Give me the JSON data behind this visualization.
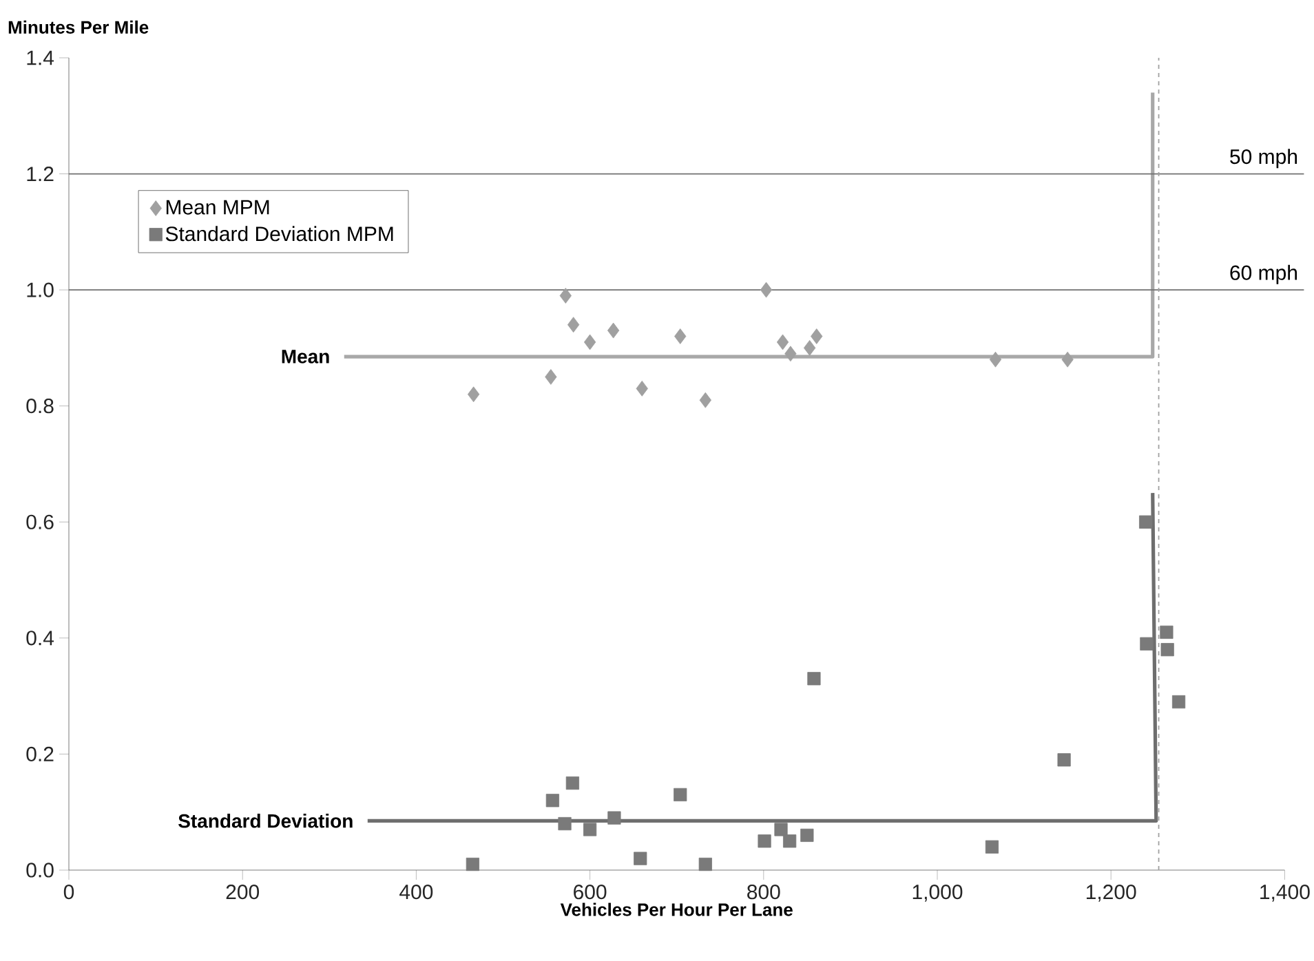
{
  "chart_data": {
    "type": "scatter",
    "xlabel": "Vehicles Per Hour Per Lane",
    "ylabel": "Minutes Per Mile",
    "xlim": [
      0,
      1400
    ],
    "ylim": [
      0,
      1.4
    ],
    "xticks": [
      0,
      200,
      400,
      600,
      800,
      {
        "value": 1000,
        "label": "1,000"
      },
      {
        "value": 1200,
        "label": "1,200"
      },
      {
        "value": 1400,
        "label": "1,400"
      }
    ],
    "yticks": [
      {
        "value": 0,
        "label": "0.0"
      },
      0.2,
      0.4,
      0.6,
      0.8,
      {
        "value": 1,
        "label": "1.0"
      },
      1.2,
      1.4
    ],
    "legend": "top left",
    "series": [
      {
        "name": "Mean MPM",
        "marker": "diamond",
        "color": "#a0a0a0",
        "x": [
          466,
          555,
          572,
          581,
          600,
          627,
          660,
          704,
          733,
          803,
          822,
          831,
          853,
          861,
          1067,
          1150
        ],
        "values": [
          0.82,
          0.85,
          0.99,
          0.94,
          0.91,
          0.93,
          0.83,
          0.92,
          0.81,
          1.0,
          0.91,
          0.89,
          0.9,
          0.92,
          0.88,
          0.88
        ]
      },
      {
        "name": "Standard Deviation MPM",
        "marker": "square",
        "color": "#7a7a7a",
        "x": [
          465,
          557,
          571,
          580,
          600,
          628,
          658,
          704,
          733,
          801,
          820,
          830,
          850,
          858,
          1063,
          1146,
          1240,
          1241,
          1264,
          1265,
          1278
        ],
        "values": [
          0.01,
          0.12,
          0.08,
          0.15,
          0.07,
          0.09,
          0.02,
          0.13,
          0.01,
          0.05,
          0.07,
          0.05,
          0.06,
          0.33,
          0.04,
          0.19,
          0.6,
          0.39,
          0.41,
          0.38,
          0.29
        ]
      },
      {
        "type": "line",
        "marker": "none",
        "color": "#a8a8a8",
        "x": [
          317,
          1248,
          1248
        ],
        "values": [
          0.885,
          0.885,
          1.34
        ]
      },
      {
        "type": "line",
        "marker": "none",
        "color": "#6e6e6e",
        "x": [
          344,
          1252,
          1248
        ],
        "values": [
          0.085,
          0.085,
          0.65
        ]
      }
    ],
    "annotations": [
      {
        "text": "Mean",
        "x": 317,
        "y": 0.885
      },
      {
        "text": "Standard Deviation",
        "x": 344,
        "y": 0.085
      }
    ],
    "ref_lines": [
      {
        "axis": "y",
        "value": 1.2,
        "label": "50 mph",
        "color": "#707070"
      },
      {
        "axis": "y",
        "value": 1.0,
        "label": "60 mph",
        "color": "#707070"
      },
      {
        "axis": "x",
        "value": 1255,
        "color": "#a0a0a0",
        "line_style": "dashed"
      }
    ]
  }
}
